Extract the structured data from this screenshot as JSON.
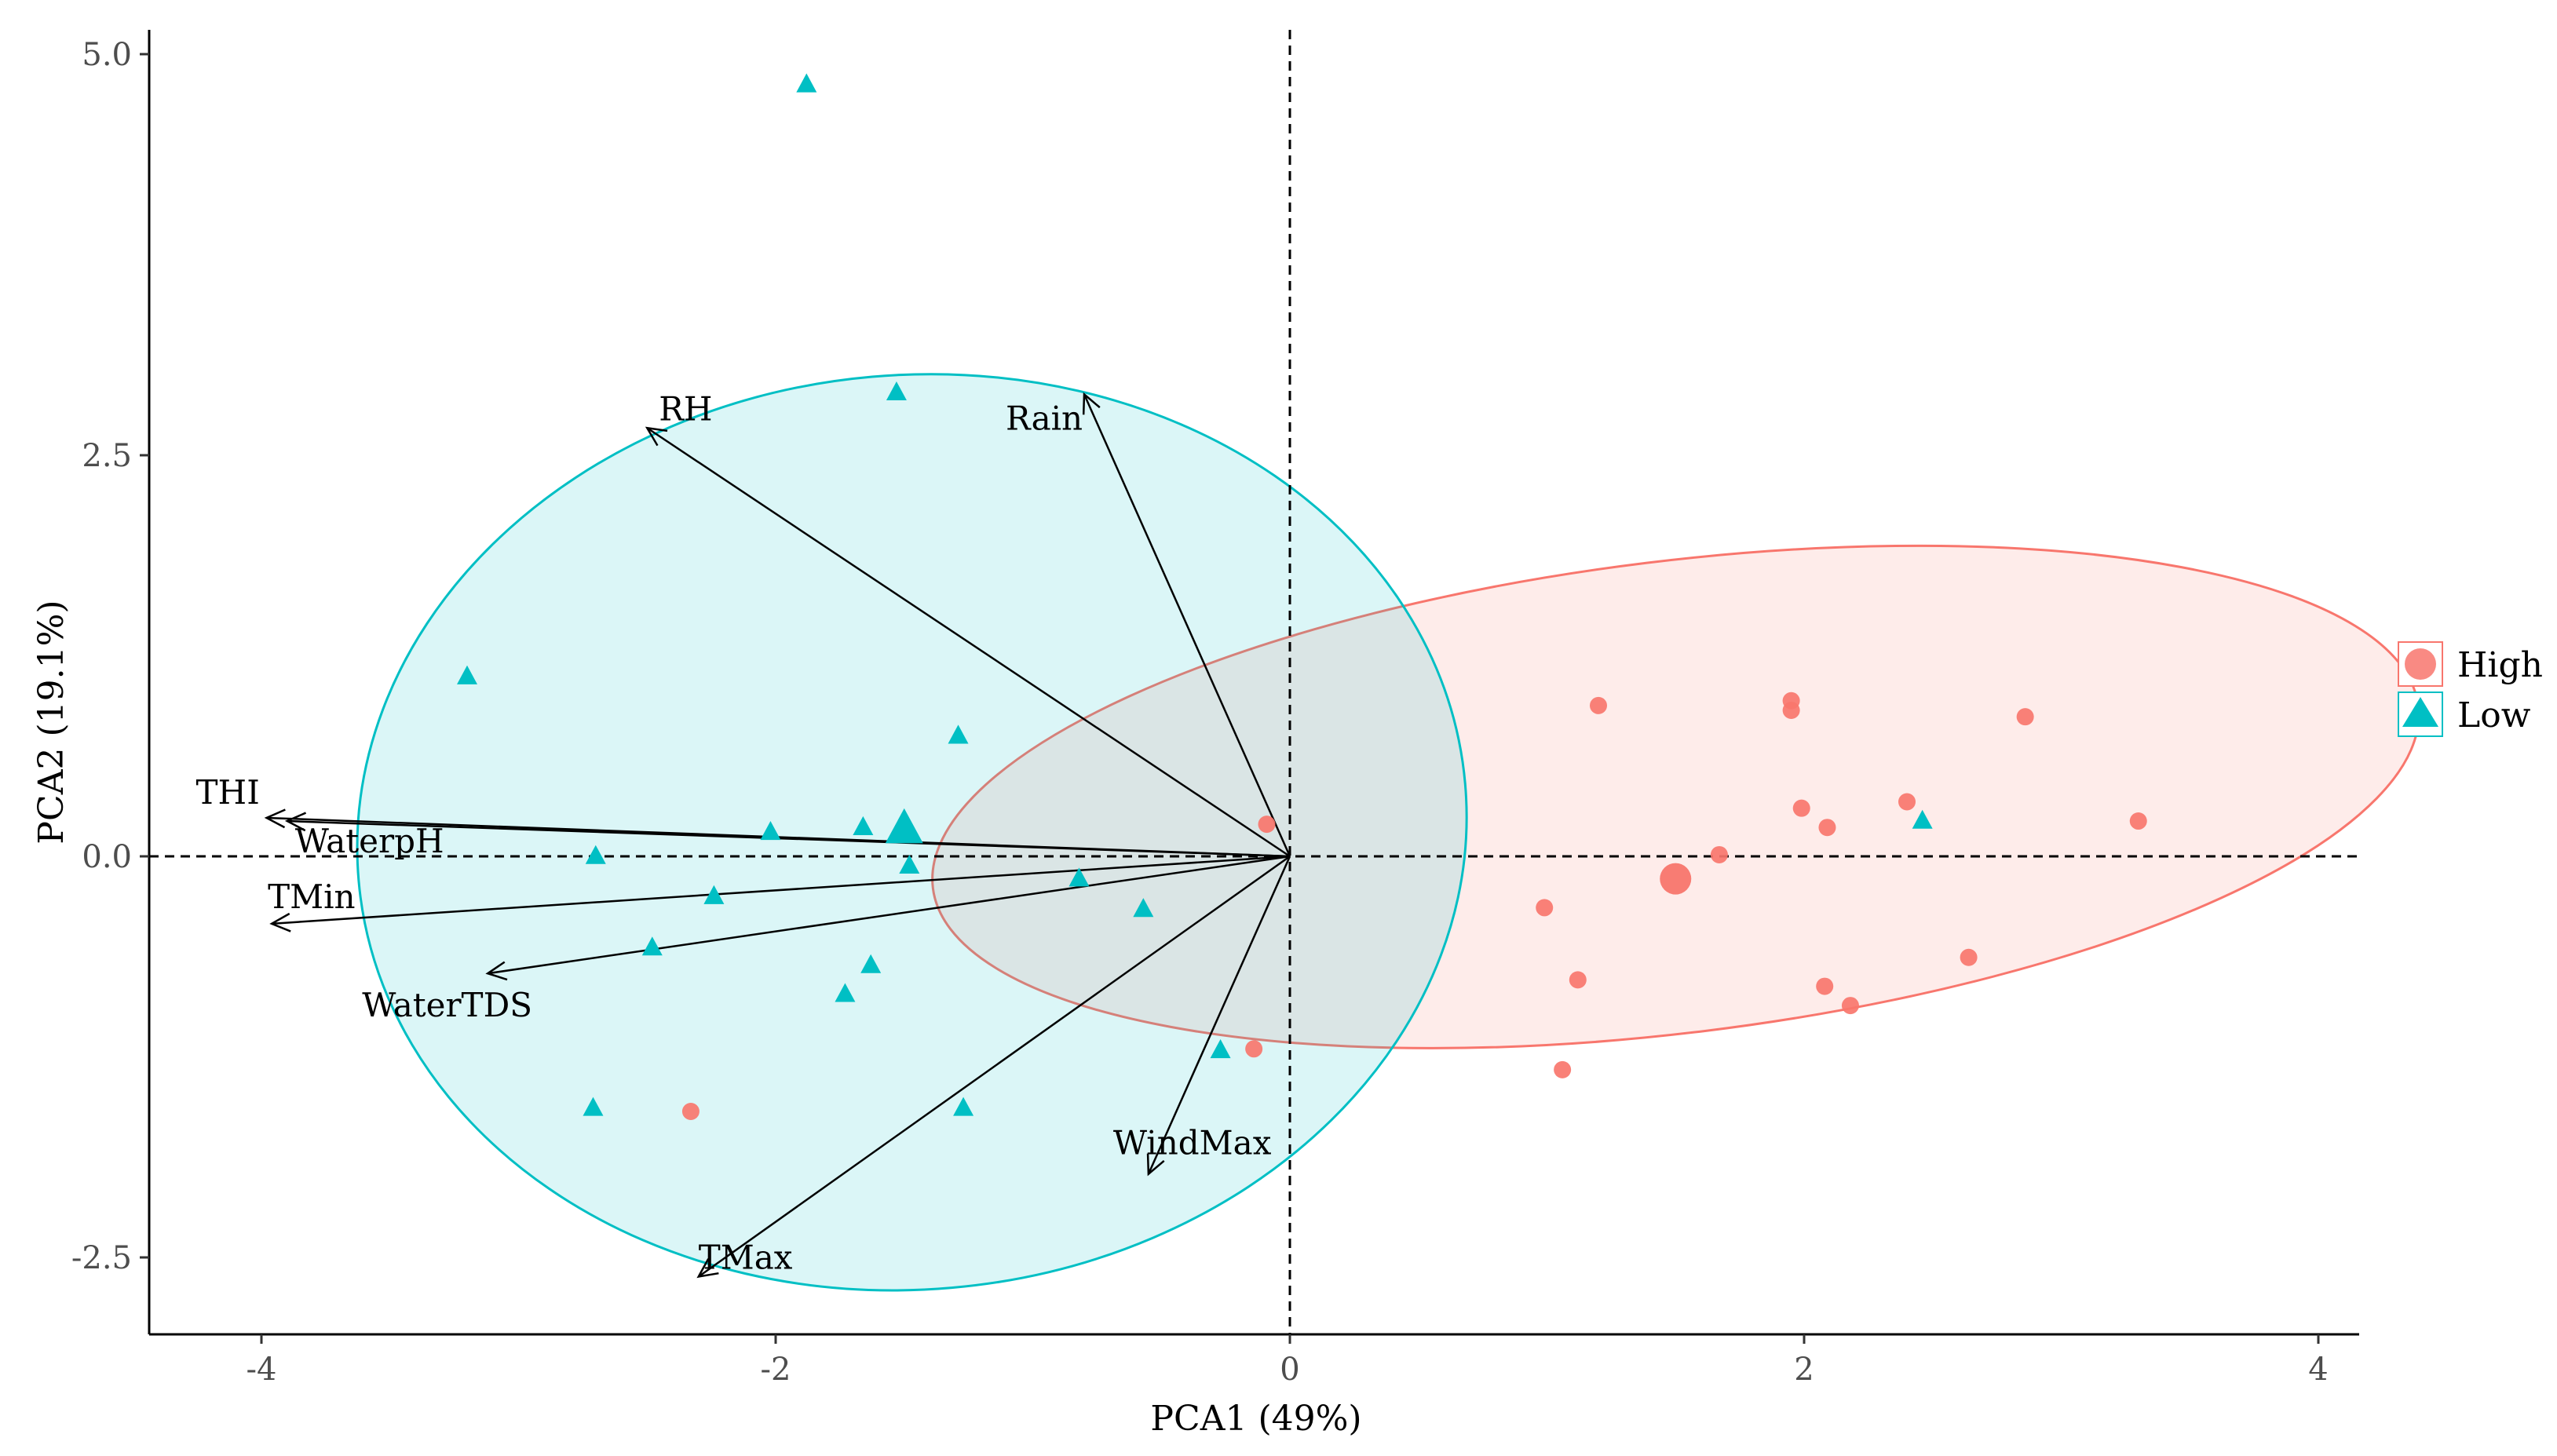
{
  "chart_data": {
    "type": "scatter",
    "subtype": "pca-biplot",
    "xlabel": "PCA1 (49%)",
    "ylabel": "PCA2 (19.1%)",
    "xlim": [
      -4.5,
      4.3
    ],
    "ylim": [
      -3.0,
      5.15
    ],
    "xticks": [
      -4,
      -2,
      0,
      2,
      4
    ],
    "xtick_labels": [
      "-4",
      "-2",
      "0",
      "2",
      "4"
    ],
    "yticks": [
      -2.5,
      0.0,
      2.5,
      5.0
    ],
    "ytick_labels": [
      "-2.5",
      "0.0",
      "2.5",
      "5.0"
    ],
    "grid": false,
    "reference_lines": {
      "x": 0,
      "y": 0,
      "style": "dashed"
    },
    "legend": {
      "position": "right",
      "entries": [
        {
          "label": "High",
          "shape": "circle",
          "color": "#F8766D"
        },
        {
          "label": "Low",
          "shape": "triangle",
          "color": "#00BFC4"
        }
      ]
    },
    "series": [
      {
        "name": "High",
        "shape": "circle",
        "color": "#F8766D",
        "points": [
          [
            1.2,
            0.94
          ],
          [
            1.95,
            0.97
          ],
          [
            1.95,
            0.91
          ],
          [
            2.86,
            0.87
          ],
          [
            1.99,
            0.3
          ],
          [
            2.09,
            0.18
          ],
          [
            2.4,
            0.34
          ],
          [
            3.3,
            0.22
          ],
          [
            1.67,
            0.01
          ],
          [
            -0.09,
            0.2
          ],
          [
            0.99,
            -0.32
          ],
          [
            1.12,
            -0.77
          ],
          [
            2.08,
            -0.81
          ],
          [
            2.18,
            -0.93
          ],
          [
            2.64,
            -0.63
          ],
          [
            -0.14,
            -1.2
          ],
          [
            1.06,
            -1.33
          ],
          [
            -2.33,
            -1.59
          ]
        ],
        "centroid": [
          1.5,
          -0.14
        ],
        "ellipse": {
          "cx": 1.5,
          "cy": 0.37,
          "rx": 2.91,
          "ry": 1.47,
          "angle_deg": 7
        }
      },
      {
        "name": "Low",
        "shape": "triangle",
        "color": "#00BFC4",
        "points": [
          [
            -1.88,
            4.81
          ],
          [
            -1.53,
            2.89
          ],
          [
            -3.2,
            1.12
          ],
          [
            -1.29,
            0.75
          ],
          [
            -2.02,
            0.15
          ],
          [
            -1.66,
            0.18
          ],
          [
            -1.48,
            -0.06
          ],
          [
            -2.7,
            0.0
          ],
          [
            -0.82,
            -0.14
          ],
          [
            -2.24,
            -0.25
          ],
          [
            -0.57,
            -0.33
          ],
          [
            -2.48,
            -0.57
          ],
          [
            -1.63,
            -0.68
          ],
          [
            -1.73,
            -0.86
          ],
          [
            -0.27,
            -1.21
          ],
          [
            -2.71,
            -1.57
          ],
          [
            -1.27,
            -1.57
          ],
          [
            2.46,
            0.22
          ]
        ],
        "centroid": [
          -1.5,
          0.17
        ],
        "ellipse": {
          "cx": -1.47,
          "cy": 0.15,
          "rx": 2.16,
          "ry": 2.85,
          "angle_deg": 5
        }
      }
    ],
    "loadings": [
      {
        "name": "THI",
        "x": -3.98,
        "y": 0.24
      },
      {
        "name": "WaterpH",
        "x": -3.9,
        "y": 0.22
      },
      {
        "name": "TMin",
        "x": -3.96,
        "y": -0.42
      },
      {
        "name": "WaterTDS",
        "x": -3.12,
        "y": -0.73
      },
      {
        "name": "RH",
        "x": -2.5,
        "y": 2.67
      },
      {
        "name": "Rain",
        "x": -0.8,
        "y": 2.88
      },
      {
        "name": "WindMax",
        "x": -0.55,
        "y": -1.98
      },
      {
        "name": "TMax",
        "x": -2.3,
        "y": -2.62
      }
    ]
  }
}
